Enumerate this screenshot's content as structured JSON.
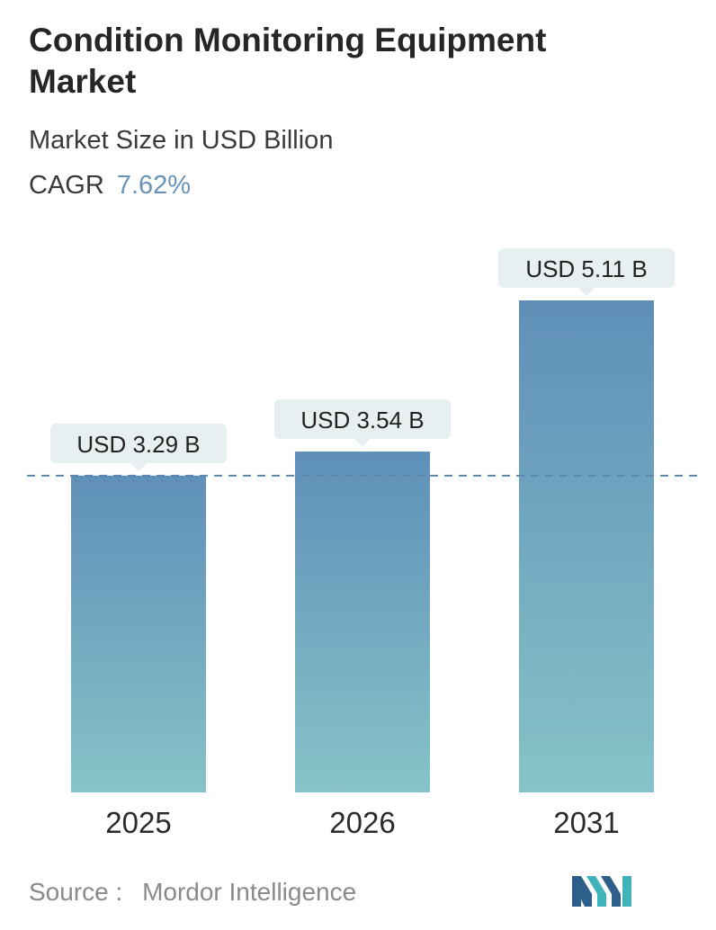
{
  "header": {
    "title": "Condition Monitoring Equipment Market",
    "subtitle": "Market Size in USD Billion",
    "cagr_label": "CAGR",
    "cagr_value": "7.62%"
  },
  "footer": {
    "source_label": "Source :",
    "source_value": "Mordor Intelligence",
    "logo_icon": "mordor-intelligence-logo-icon"
  },
  "colors": {
    "bar_top": "#5f8fb8",
    "bar_bottom": "#86c3c8",
    "label_bg": "#e8eff0",
    "dashed_line": "#5d86ab",
    "cagr": "#6a93b8"
  },
  "chart_data": {
    "type": "bar",
    "categories": [
      "2025",
      "2026",
      "2031"
    ],
    "values": [
      3.29,
      3.54,
      5.11
    ],
    "value_labels": [
      "USD 3.29 B",
      "USD 3.54 B",
      "USD 5.11 B"
    ],
    "title": "Condition Monitoring Equipment Market",
    "subtitle": "Market Size in USD Billion",
    "xlabel": "",
    "ylabel": "",
    "ylim": [
      0,
      5.11
    ],
    "grid": false,
    "reference_line": 3.29
  }
}
